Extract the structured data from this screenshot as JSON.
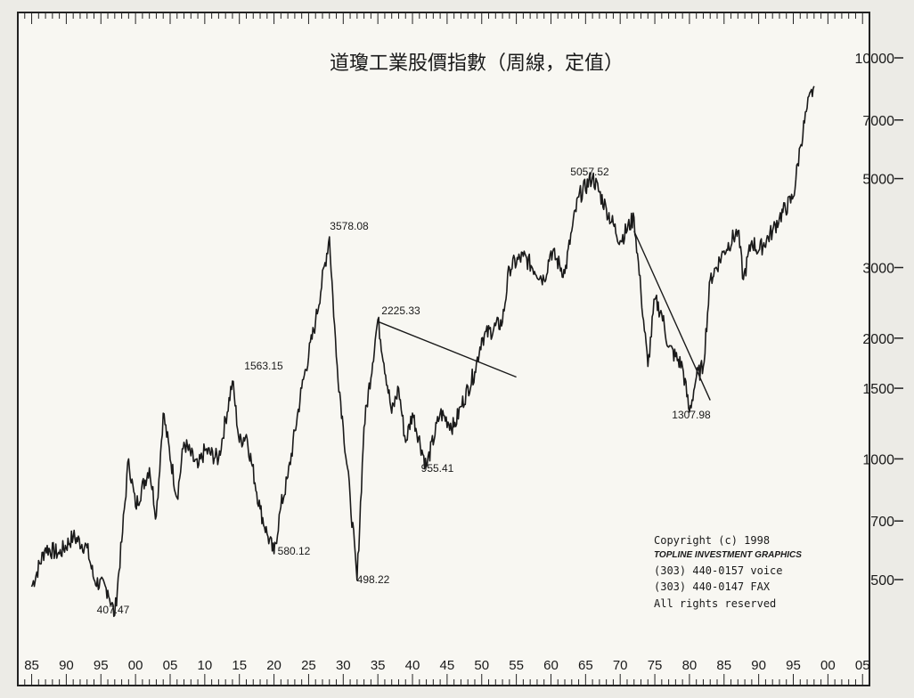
{
  "chart_data": {
    "type": "line",
    "title": "道瓊工業股價指數（周線，定值）",
    "y_scale": "log",
    "ylim": [
      400,
      10000
    ],
    "xlim": [
      1883,
      2006
    ],
    "yticks": [
      10000,
      7000,
      5000,
      3000,
      2000,
      1500,
      1000,
      700,
      500
    ],
    "ytick_labels": [
      "10000",
      "7000",
      "5000",
      "3000",
      "2000",
      "1500",
      "1000",
      "700",
      "500"
    ],
    "xtick_labels": [
      "85",
      "90",
      "95",
      "00",
      "05",
      "10",
      "15",
      "20",
      "25",
      "30",
      "35",
      "40",
      "45",
      "50",
      "55",
      "60",
      "65",
      "70",
      "75",
      "80",
      "85",
      "90",
      "95",
      "00",
      "05"
    ],
    "grid": false,
    "legend": "none",
    "series": [
      {
        "x": [
          1885,
          1887,
          1889,
          1891,
          1893,
          1894,
          1896,
          1897,
          1898,
          1899,
          1900,
          1902,
          1903,
          1904,
          1906,
          1907,
          1909,
          1910,
          1912,
          1914,
          1915,
          1916,
          1918,
          1919,
          1920,
          1921,
          1922,
          1924,
          1926,
          1928,
          1929,
          1930,
          1931,
          1932,
          1933,
          1935,
          1937,
          1938,
          1939,
          1940,
          1942,
          1944,
          1946,
          1947,
          1949,
          1950,
          1953,
          1954,
          1956,
          1959,
          1960,
          1962,
          1963,
          1964,
          1966,
          1968,
          1970,
          1972,
          1973,
          1974,
          1975,
          1976,
          1977,
          1979,
          1980,
          1981,
          1982,
          1983,
          1985,
          1987,
          1987.8,
          1989,
          1990,
          1992,
          1993,
          1995,
          1996,
          1997,
          1998
        ],
        "values": [
          480,
          600,
          580,
          640,
          600,
          500,
          470,
          407.47,
          620,
          1000,
          760,
          950,
          720,
          1300,
          800,
          1100,
          950,
          1050,
          1000,
          1563.15,
          1100,
          1150,
          750,
          650,
          580.12,
          760,
          900,
          1500,
          2200,
          3578.08,
          1800,
          1200,
          800,
          498.22,
          1200,
          2225.33,
          1300,
          1500,
          1100,
          1300,
          955.41,
          1300,
          1200,
          1350,
          1650,
          2000,
          2200,
          3000,
          3200,
          2800,
          3300,
          2900,
          3700,
          4500,
          5057.52,
          4200,
          3500,
          4000,
          2600,
          1700,
          2500,
          2300,
          1900,
          1700,
          1307.98,
          1600,
          1700,
          2800,
          3300,
          3700,
          2800,
          3500,
          3300,
          3700,
          4000,
          4500,
          6000,
          7500,
          8500
        ]
      }
    ],
    "annotations": [
      "3578.08",
      "2225.33",
      "1563.15",
      "580.12",
      "498.22",
      "955.41",
      "407.47",
      "5057.52",
      "1307.98"
    ],
    "trendlines": [
      {
        "x": [
          1935,
          1955
        ],
        "values": [
          2200,
          1600
        ]
      },
      {
        "x": [
          1972,
          1983
        ],
        "values": [
          3700,
          1400
        ]
      }
    ],
    "copyright": {
      "line1": "Copyright (c) 1998",
      "line2": "TOPLINE INVESTMENT GRAPHICS",
      "line3": "(303) 440-0157 voice",
      "line4": "(303) 440-0147 FAX",
      "line5": "All rights reserved"
    }
  }
}
